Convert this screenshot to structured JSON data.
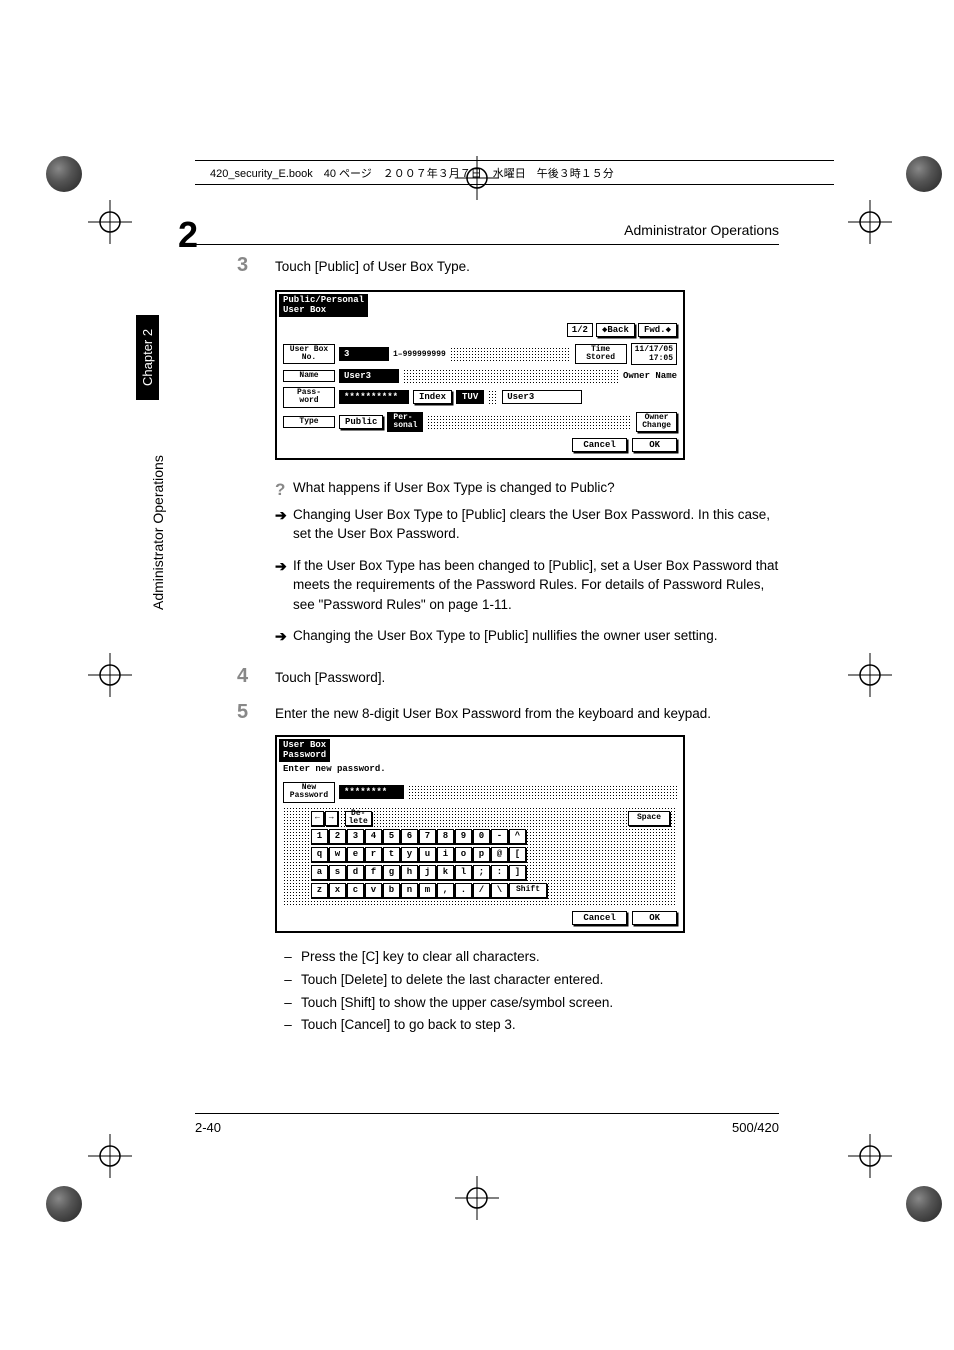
{
  "page": {
    "header_file": "420_security_E.book　40 ページ　２００７年３月７日　水曜日　午後３時１５分",
    "section_number": "2",
    "section_header": "Administrator Operations",
    "sidebar_text": "Administrator Operations",
    "chapter_tab": "Chapter 2",
    "footer_left": "2-40",
    "footer_right": "500/420"
  },
  "step3": {
    "num": "3",
    "text": "Touch [Public] of User Box Type."
  },
  "screen1": {
    "title_l1": "Public/Personal",
    "title_l2": "User Box",
    "page_indicator": "1/2",
    "back_btn": "◆Back",
    "fwd_btn": "Fwd.◆",
    "userbox_no_label": "User Box\nNo.",
    "userbox_no_val": "3",
    "userbox_no_range": "1–999999999",
    "time_label": "Time\nStored",
    "time_val": "11/17/05\n17:05",
    "name_label": "Name",
    "name_val": "User3",
    "owner_name_label": "Owner Name",
    "owner_name_val": "User3",
    "pass_label": "Pass-\nword",
    "pass_val": "**********",
    "index_btn": "Index",
    "index_val": "TUV",
    "type_label": "Type",
    "type_public": "Public",
    "type_personal": "Per-\nsonal",
    "owner_change_btn": "Owner\nChange",
    "cancel_btn": "Cancel",
    "ok_btn": "OK"
  },
  "qa": {
    "question": "What happens if User Box Type is changed to Public?",
    "answer": "Changing User Box Type to [Public] clears the User Box Password. In this case, set the User Box Password.",
    "bullet1": "If the User Box Type has been changed to [Public], set a User Box Password that meets the requirements of the Password Rules. For details of Password Rules, see \"Password Rules\" on page 1-11.",
    "bullet2": "Changing the User Box Type to [Public] nullifies the owner user setting."
  },
  "step4": {
    "num": "4",
    "text": "Touch [Password]."
  },
  "step5": {
    "num": "5",
    "text": "Enter the new 8-digit User Box Password from the keyboard and keypad."
  },
  "screen2": {
    "title_l1": "User Box",
    "title_l2": "Password",
    "prompt": "Enter new password.",
    "new_pw_label": "New\nPassword",
    "new_pw_val": "********",
    "delete_key": "De-\nlete",
    "space_key": "Space",
    "shift_key": "Shift",
    "cancel_btn": "Cancel",
    "ok_btn": "OK",
    "row_nums": [
      "1",
      "2",
      "3",
      "4",
      "5",
      "6",
      "7",
      "8",
      "9",
      "0",
      "-",
      "^"
    ],
    "row_q": [
      "q",
      "w",
      "e",
      "r",
      "t",
      "y",
      "u",
      "i",
      "o",
      "p",
      "@",
      "["
    ],
    "row_a": [
      "a",
      "s",
      "d",
      "f",
      "g",
      "h",
      "j",
      "k",
      "l",
      ";",
      ":",
      "]"
    ],
    "row_z": [
      "z",
      "x",
      "c",
      "v",
      "b",
      "n",
      "m",
      ",",
      ".",
      "/",
      "\\"
    ],
    "arrow_left": "←",
    "arrow_right": "→"
  },
  "notes": {
    "n1": "Press the [C] key to clear all characters.",
    "n2": "Touch [Delete] to delete the last character entered.",
    "n3": "Touch [Shift] to show the upper case/symbol screen.",
    "n4": "Touch [Cancel] to go back to step 3."
  }
}
